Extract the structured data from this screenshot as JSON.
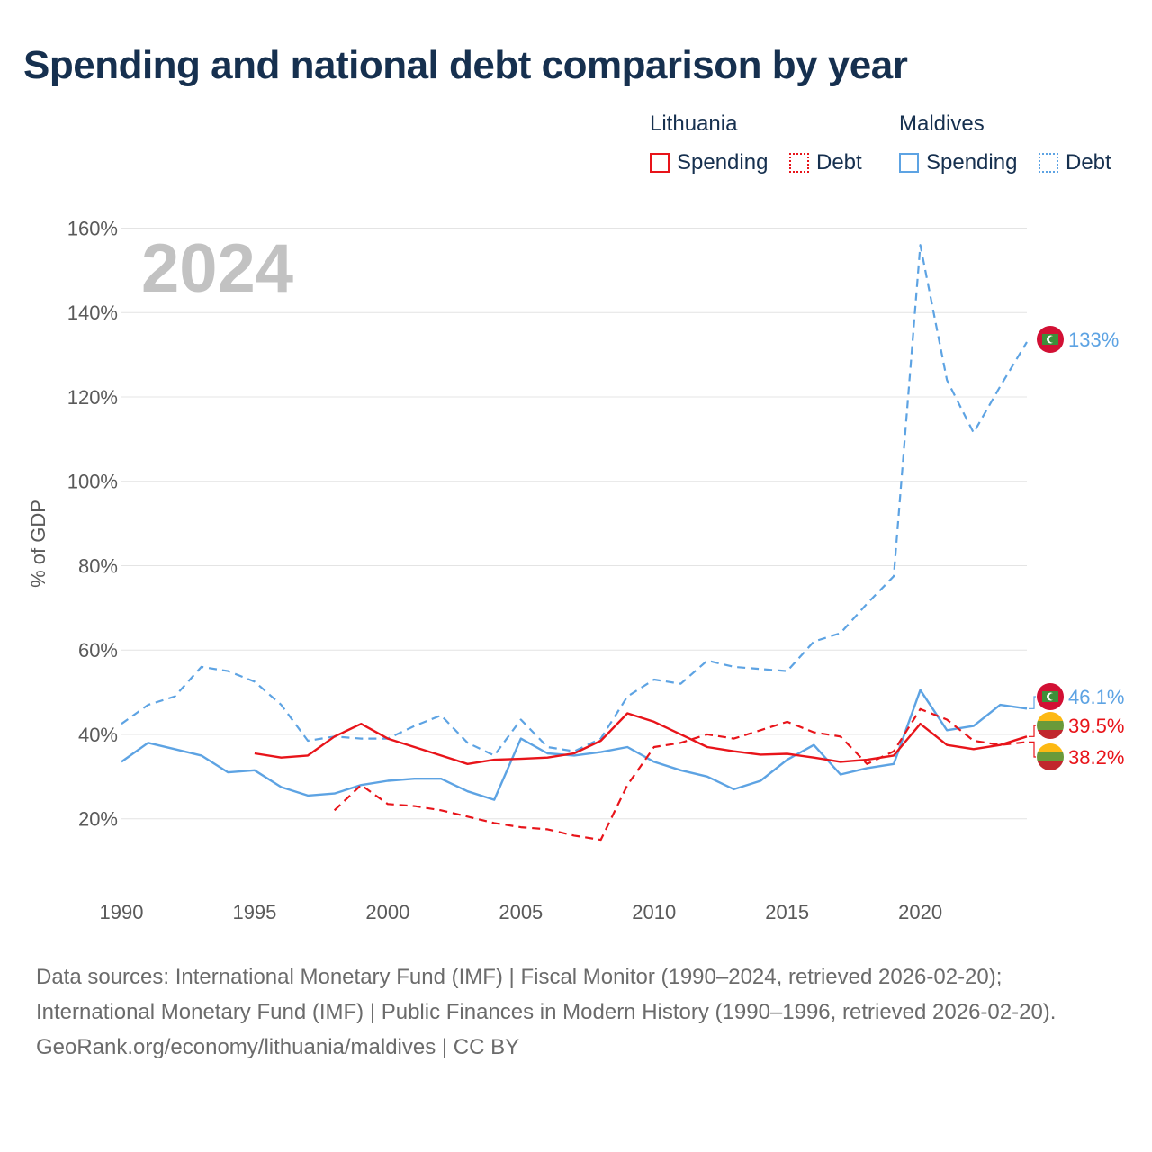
{
  "title": "Spending and national debt comparison by year",
  "legend": {
    "groups": [
      {
        "name": "Lithuania",
        "color": "#e8141a",
        "items": [
          {
            "label": "Spending",
            "style": "solid"
          },
          {
            "label": "Debt",
            "style": "dotted"
          }
        ]
      },
      {
        "name": "Maldives",
        "color": "#5da3e3",
        "items": [
          {
            "label": "Spending",
            "style": "solid"
          },
          {
            "label": "Debt",
            "style": "dotted"
          }
        ]
      }
    ]
  },
  "chart_data": {
    "type": "line",
    "title": "Spending and national debt comparison by year",
    "year_watermark": "2024",
    "ylabel": "% of GDP",
    "xlabel": "",
    "xlim": [
      1990,
      2024
    ],
    "ylim": [
      5,
      165
    ],
    "y_ticks": [
      20,
      40,
      60,
      80,
      100,
      120,
      140,
      160
    ],
    "y_tick_labels": [
      "20%",
      "40%",
      "60%",
      "80%",
      "100%",
      "120%",
      "140%",
      "160%"
    ],
    "x_ticks": [
      1990,
      1995,
      2000,
      2005,
      2010,
      2015,
      2020
    ],
    "x_tick_labels": [
      "1990",
      "1995",
      "2000",
      "2005",
      "2010",
      "2015",
      "2020"
    ],
    "grid": true,
    "series": [
      {
        "name": "Maldives Debt",
        "country": "Maldives",
        "measure": "Debt",
        "color": "#5da3e3",
        "dash": "dashed",
        "x": [
          1990,
          1991,
          1992,
          1993,
          1994,
          1995,
          1996,
          1997,
          1998,
          1999,
          2000,
          2001,
          2002,
          2003,
          2004,
          2005,
          2006,
          2007,
          2008,
          2009,
          2010,
          2011,
          2012,
          2013,
          2014,
          2015,
          2016,
          2017,
          2018,
          2019,
          2020,
          2021,
          2022,
          2023,
          2024
        ],
        "values": [
          42.5,
          47,
          49,
          56,
          55,
          52.5,
          47,
          38.5,
          39.5,
          39,
          39,
          42,
          44.5,
          38,
          35,
          43.5,
          37,
          36,
          39,
          49,
          53,
          52,
          57.5,
          56,
          55.5,
          55,
          62,
          64,
          71,
          77.5,
          156,
          124,
          111.5,
          122.5,
          133
        ],
        "end_label": "133%"
      },
      {
        "name": "Maldives Spending",
        "country": "Maldives",
        "measure": "Spending",
        "color": "#5da3e3",
        "dash": "solid",
        "x": [
          1990,
          1991,
          1992,
          1993,
          1994,
          1995,
          1996,
          1997,
          1998,
          1999,
          2000,
          2001,
          2002,
          2003,
          2004,
          2005,
          2006,
          2007,
          2008,
          2009,
          2010,
          2011,
          2012,
          2013,
          2014,
          2015,
          2016,
          2017,
          2018,
          2019,
          2020,
          2021,
          2022,
          2023,
          2024
        ],
        "values": [
          33.5,
          38,
          36.5,
          35,
          31,
          31.5,
          27.5,
          25.5,
          26,
          28,
          29,
          29.5,
          29.5,
          26.5,
          24.5,
          39,
          35.5,
          35,
          35.8,
          37,
          33.5,
          31.5,
          30,
          27,
          29,
          34,
          37.5,
          30.5,
          32,
          33,
          50.5,
          41,
          42,
          47,
          46.1
        ],
        "end_label": "46.1%"
      },
      {
        "name": "Lithuania Spending",
        "country": "Lithuania",
        "measure": "Spending",
        "color": "#e8141a",
        "dash": "solid",
        "x": [
          1995,
          1996,
          1997,
          1998,
          1999,
          2000,
          2001,
          2002,
          2003,
          2004,
          2005,
          2006,
          2007,
          2008,
          2009,
          2010,
          2011,
          2012,
          2013,
          2014,
          2015,
          2016,
          2017,
          2018,
          2019,
          2020,
          2021,
          2022,
          2023,
          2024
        ],
        "values": [
          35.5,
          34.5,
          35,
          39.5,
          42.5,
          39,
          37,
          35,
          33,
          34,
          34.2,
          34.5,
          35.5,
          38.5,
          45,
          43,
          40,
          37,
          36,
          35.2,
          35.4,
          34.5,
          33.5,
          34,
          35,
          42.5,
          37.5,
          36.5,
          37.5,
          39.5
        ],
        "end_label": "39.5%"
      },
      {
        "name": "Lithuania Debt",
        "country": "Lithuania",
        "measure": "Debt",
        "color": "#e8141a",
        "dash": "dashed",
        "x": [
          1998,
          1999,
          2000,
          2001,
          2002,
          2003,
          2004,
          2005,
          2006,
          2007,
          2008,
          2009,
          2010,
          2011,
          2012,
          2013,
          2014,
          2015,
          2016,
          2017,
          2018,
          2019,
          2020,
          2021,
          2022,
          2023,
          2024
        ],
        "values": [
          22,
          28,
          23.5,
          23,
          22,
          20.5,
          19,
          18,
          17.5,
          16,
          15,
          28,
          37,
          38,
          40,
          39,
          41,
          43,
          40.5,
          39.5,
          33,
          36,
          46,
          43.5,
          38.5,
          37.5,
          38.2
        ],
        "end_label": "38.2%"
      }
    ]
  },
  "footer": {
    "sources": "Data sources: International Monetary Fund (IMF) | Fiscal Monitor (1990–2024, retrieved 2026-02-20); International Monetary Fund (IMF) | Public Finances in Modern History (1990–1996, retrieved 2026-02-20).",
    "credit": "GeoRank.org/economy/lithuania/maldives | CC BY"
  }
}
